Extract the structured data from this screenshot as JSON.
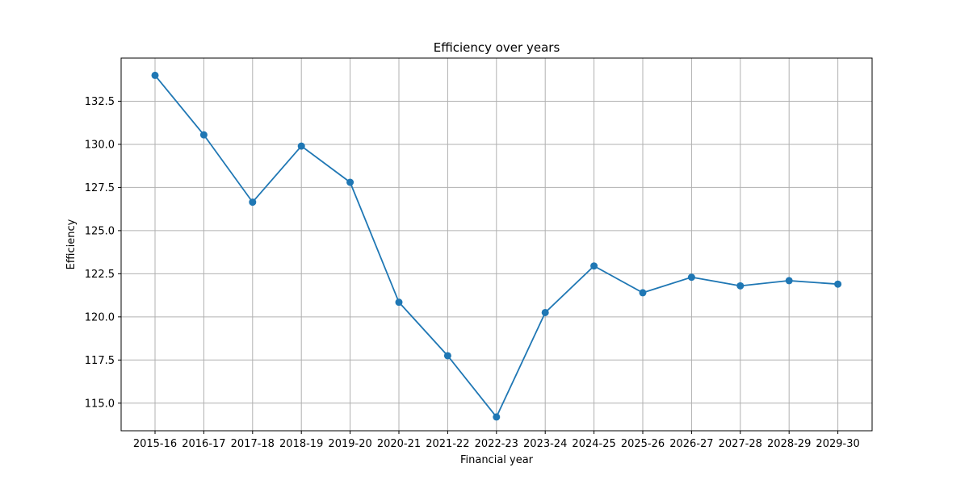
{
  "chart_data": {
    "type": "line",
    "title": "Efficiency over years",
    "xlabel": "Financial year",
    "ylabel": "Efficiency",
    "categories": [
      "2015-16",
      "2016-17",
      "2017-18",
      "2018-19",
      "2019-20",
      "2020-21",
      "2021-22",
      "2022-23",
      "2023-24",
      "2024-25",
      "2025-26",
      "2026-27",
      "2027-28",
      "2028-29",
      "2029-30"
    ],
    "series": [
      {
        "values": [
          134.0,
          130.55,
          126.65,
          129.9,
          127.8,
          120.85,
          117.75,
          114.2,
          120.25,
          122.95,
          121.4,
          122.3,
          121.8,
          122.1,
          121.9
        ],
        "color": "#1f77b4"
      }
    ],
    "yticks": [
      115.0,
      117.5,
      120.0,
      122.5,
      125.0,
      127.5,
      130.0,
      132.5
    ],
    "ytick_labels": [
      "115.0",
      "117.5",
      "120.0",
      "122.5",
      "125.0",
      "127.5",
      "130.0",
      "132.5"
    ],
    "ylim": [
      113.4,
      135.0
    ],
    "grid": true,
    "legend": false
  }
}
